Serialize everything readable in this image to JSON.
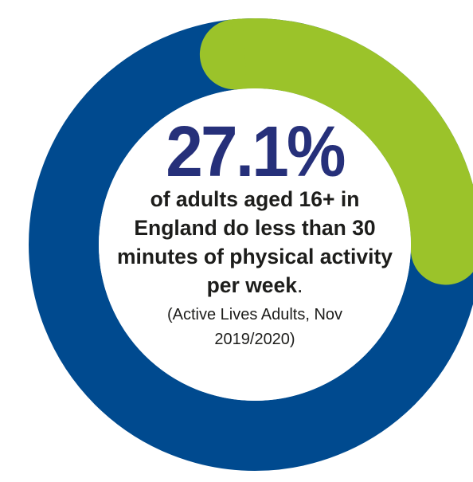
{
  "chart_data": {
    "type": "pie",
    "style": "donut",
    "slices": [
      {
        "label": "",
        "value": 27.1
      },
      {
        "label": "",
        "value": 72.9
      }
    ]
  },
  "headline": {
    "value": "27.1%",
    "statement": "of adults aged 16+ in England do less than 30 minutes of physical activity per week",
    "statement_end": ".",
    "source": "(Active Lives Adults, Nov 2019/2020)"
  },
  "colors": {
    "highlight_segment": "#9bc32a",
    "remaining_segment": "#004a8f",
    "headline_value": "#26307a",
    "text": "#1d1d1b"
  }
}
